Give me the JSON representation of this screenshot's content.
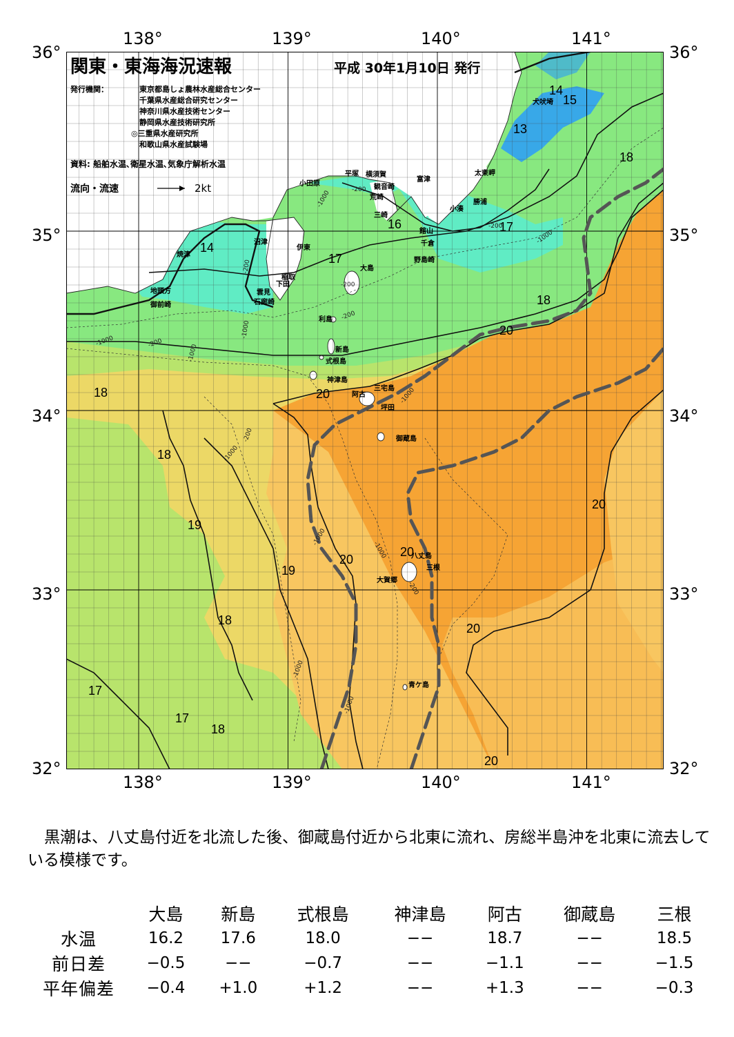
{
  "map": {
    "title": "関東・東海海況速報",
    "issue_date": "平成 30年1月10日 発行",
    "issuer_label": "発行機関：",
    "issuers": [
      "東京都島しょ農林水産総合センター",
      "千葉県水産総合研究センター",
      "神奈川県水産技術センター",
      "静岡県水産技術研究所",
      "◎三重県水産研究所",
      "和歌山県水産試験場"
    ],
    "source": "資料: 船舶水温､衛星水温､気象庁解析水温",
    "legend_label": "流向・流速",
    "legend_scale": "2kt",
    "lon_labels": [
      "138°",
      "139°",
      "140°",
      "141°"
    ],
    "lat_labels": [
      "36°",
      "35°",
      "34°",
      "33°",
      "32°"
    ],
    "place_names": [
      "小田原",
      "平塚",
      "横須賀",
      "観音崎",
      "富津",
      "荒崎",
      "三崎",
      "館山",
      "千倉",
      "小湊",
      "勝浦",
      "太東岬",
      "犬吠埼",
      "野島崎",
      "沼津",
      "伊東",
      "稲取",
      "下田",
      "雲見",
      "石廊崎",
      "焼津",
      "地頭方",
      "御前崎",
      "大島",
      "利島",
      "新島",
      "式根島",
      "神津島",
      "三宅島",
      "阿古",
      "坪田",
      "御蔵島",
      "八丈島",
      "三根",
      "大賀郷",
      "青ケ島"
    ],
    "isotherm_labels": [
      "14",
      "15",
      "13",
      "18",
      "16",
      "17",
      "14",
      "17",
      "18",
      "20",
      "18",
      "20",
      "18",
      "19",
      "19",
      "18",
      "20",
      "20",
      "20",
      "20",
      "17",
      "17",
      "18",
      "20"
    ],
    "depth_labels": [
      "-1000",
      "-200",
      "-200",
      "-1000",
      "-200",
      "-200",
      "-200",
      "-1000",
      "-1000",
      "-200",
      "-1000",
      "-1000",
      "-200",
      "-1000",
      "-1000",
      "-1000",
      "-200",
      "-1000",
      "-1000"
    ],
    "colors": {
      "sea_warmest": "#f6a434",
      "sea_warm": "#f8c660",
      "sea_mid": "#ecd866",
      "sea_mild": "#b8e46c",
      "sea_cool": "#88e880",
      "sea_cold": "#60ecc4",
      "sea_coldest": "#38a8e8",
      "land": "#ffffff",
      "kuroshio_axis": "#555555"
    }
  },
  "summary": "黒潮は、八丈島付近を北流した後、御蔵島付近から北東に流れ、房総半島沖を北東に流去している模様です。",
  "table": {
    "headers": [
      "大島",
      "新島",
      "式根島",
      "神津島",
      "阿古",
      "御蔵島",
      "三根"
    ],
    "rows": [
      {
        "label": "水温",
        "values": [
          "16.2",
          "17.6",
          "18.0",
          "−−",
          "18.7",
          "−−",
          "18.5"
        ]
      },
      {
        "label": "前日差",
        "values": [
          "−0.5",
          "−−",
          "−0.7",
          "−−",
          "−1.1",
          "−−",
          "−1.5"
        ]
      },
      {
        "label": "平年偏差",
        "values": [
          "−0.4",
          "+1.0",
          "+1.2",
          "−−",
          "+1.3",
          "−−",
          "−0.3"
        ]
      }
    ]
  }
}
